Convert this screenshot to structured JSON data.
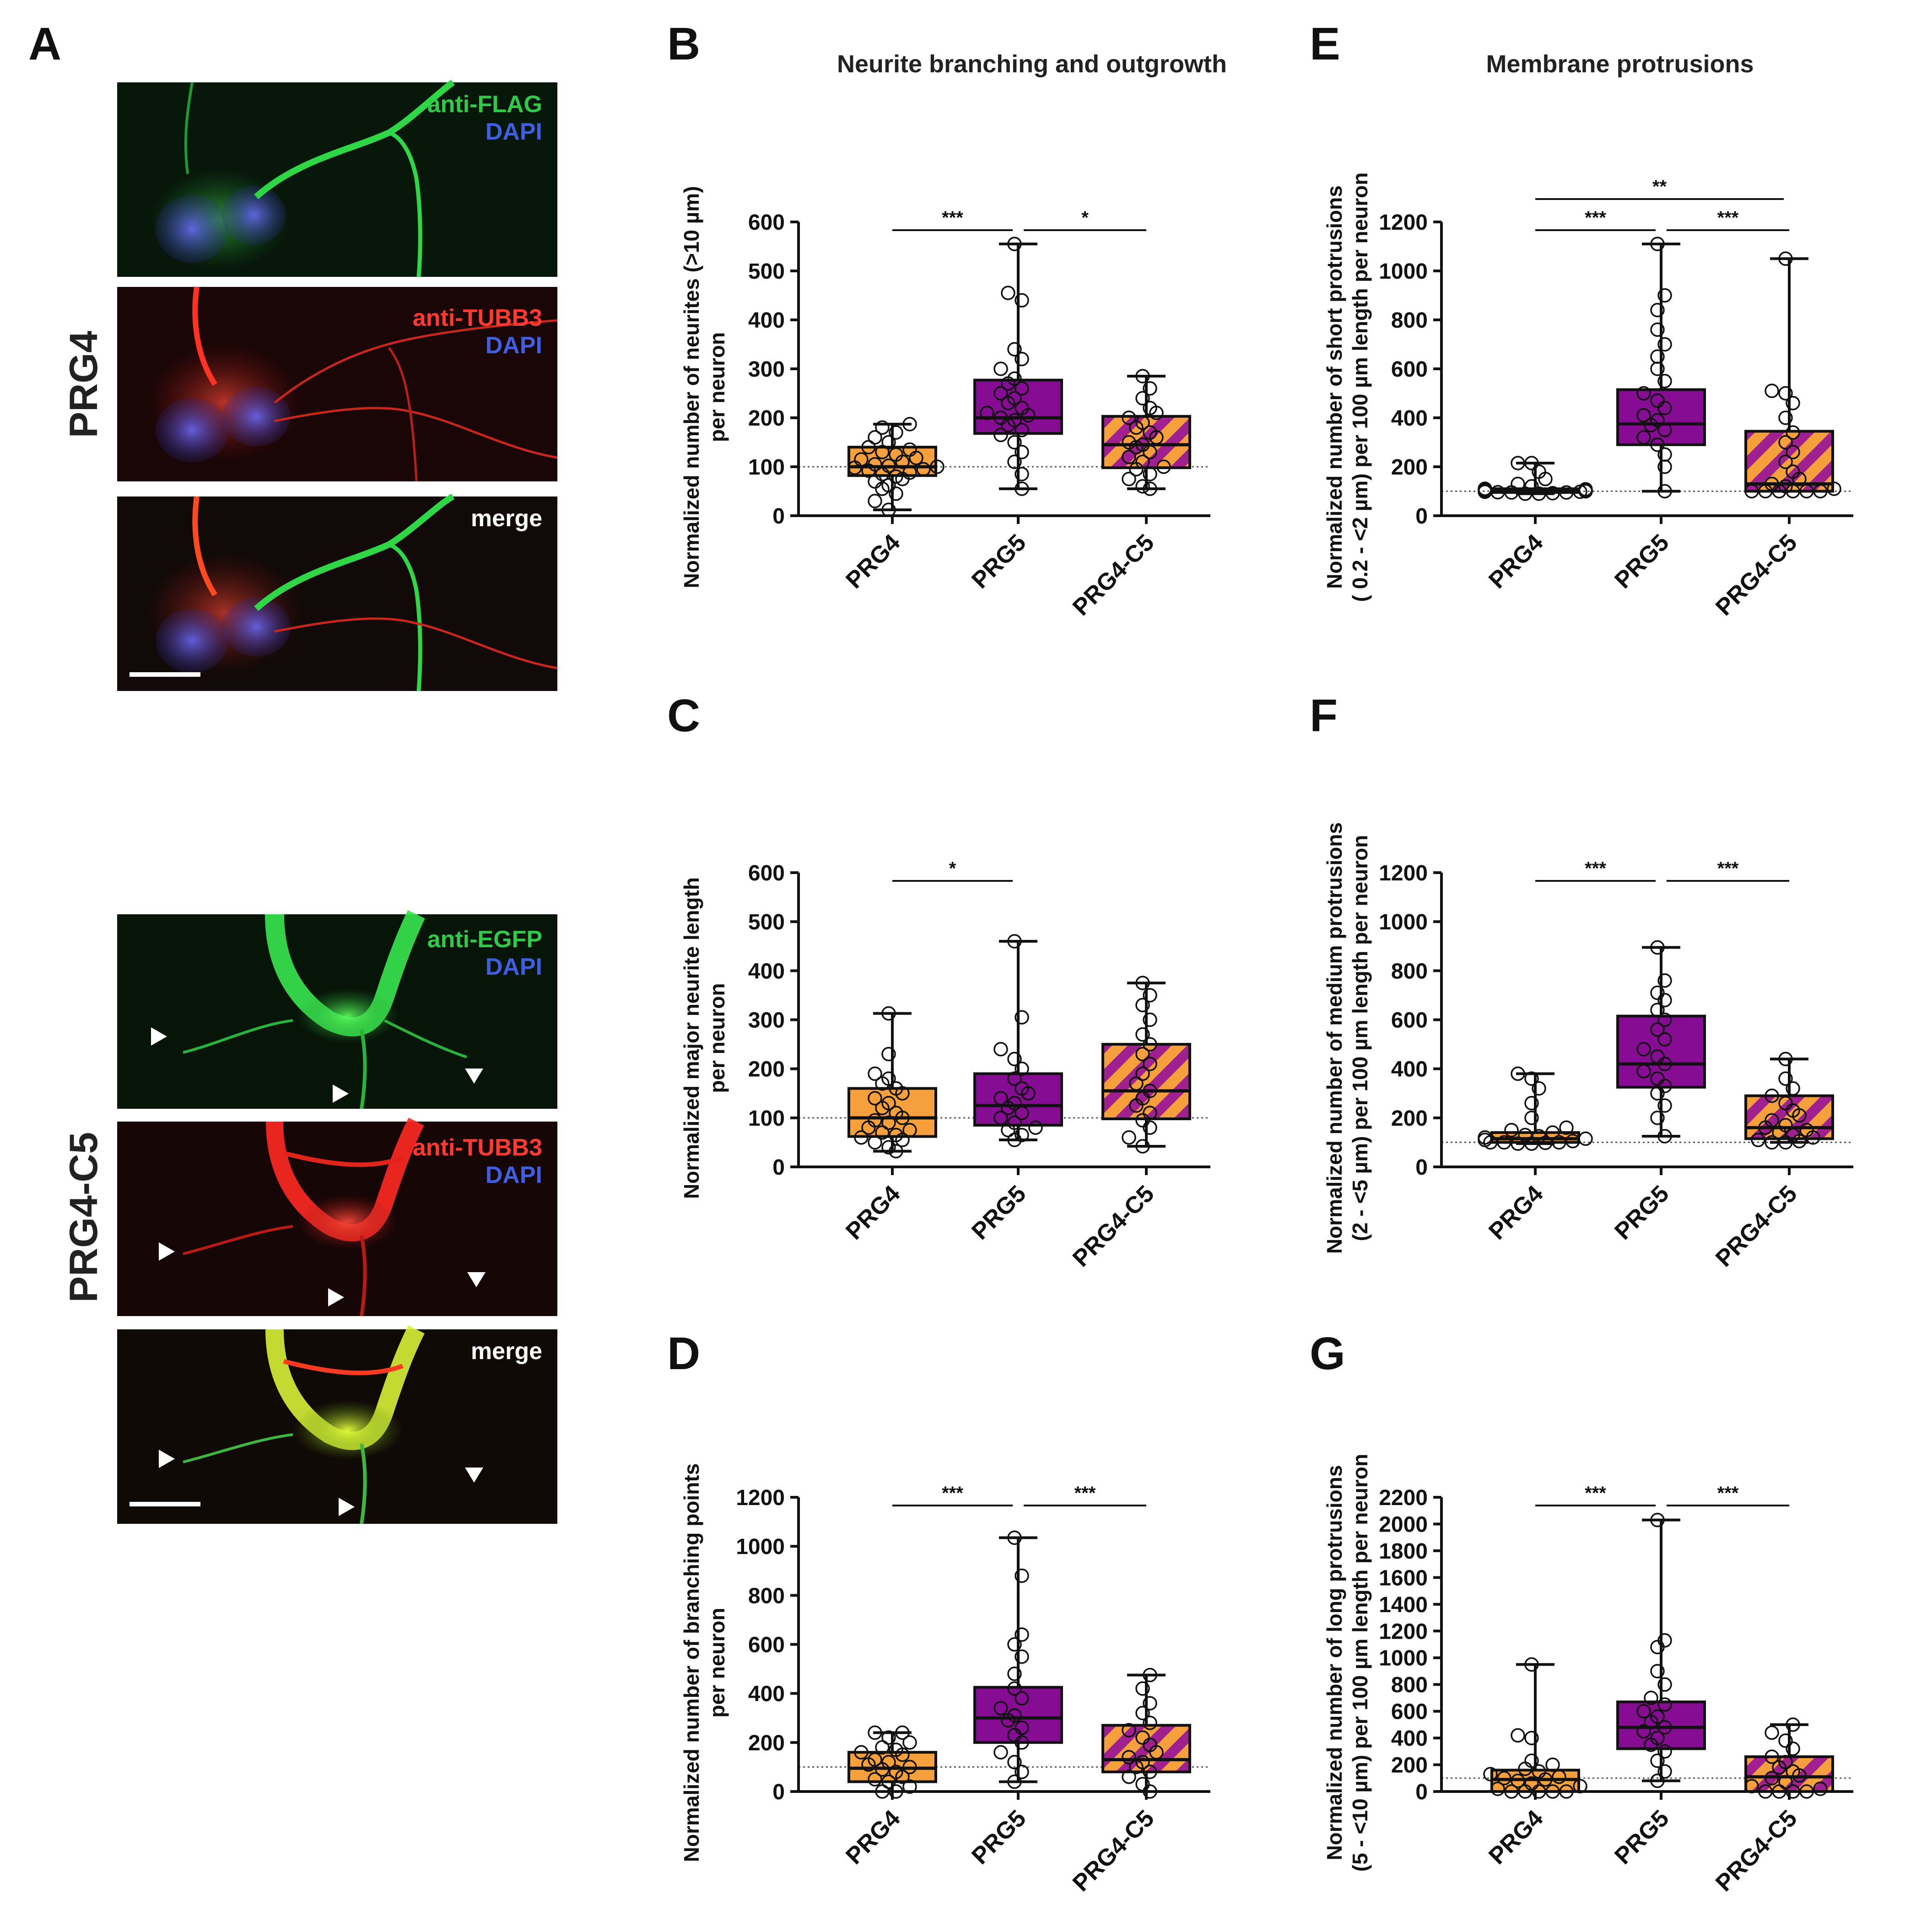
{
  "colors": {
    "prg4": "#f5a03c",
    "prg5": "#860c94",
    "prg4c5_base": "#f5a03c",
    "prg4c5_stripe": "#a0208f",
    "green": "#31c948",
    "red": "#ff3a30",
    "blue": "#3f5fe0",
    "white": "#ffffff"
  },
  "panel_letters": [
    "A",
    "B",
    "C",
    "D",
    "E",
    "F",
    "G"
  ],
  "sections": {
    "left_title": "Neurite branching and outgrowth",
    "right_title": "Membrane protrusions"
  },
  "micrographs": {
    "group1": {
      "condition": "PRG4",
      "tiles": [
        {
          "lines": [
            {
              "text": "anti-FLAG",
              "color": "green"
            },
            {
              "text": "DAPI",
              "color": "blue"
            }
          ]
        },
        {
          "lines": [
            {
              "text": "anti-TUBB3",
              "color": "red"
            },
            {
              "text": "DAPI",
              "color": "blue"
            }
          ]
        },
        {
          "lines": [
            {
              "text": "merge",
              "color": "white"
            }
          ]
        }
      ]
    },
    "group2": {
      "condition": "PRG4-C5",
      "tiles": [
        {
          "lines": [
            {
              "text": "anti-EGFP",
              "color": "green"
            },
            {
              "text": "DAPI",
              "color": "blue"
            }
          ]
        },
        {
          "lines": [
            {
              "text": "anti-TUBB3",
              "color": "red"
            },
            {
              "text": "DAPI",
              "color": "blue"
            }
          ]
        },
        {
          "lines": [
            {
              "text": "merge",
              "color": "white"
            }
          ]
        }
      ]
    }
  },
  "chart_data": [
    {
      "panel": "B",
      "type": "box",
      "ylabel_lines": [
        "Normalized number of neurites (>10 µm)",
        "per neuron"
      ],
      "categories": [
        "PRG4",
        "PRG5",
        "PRG4-C5"
      ],
      "ylim": [
        0,
        600
      ],
      "yticks": [
        0,
        100,
        200,
        300,
        400,
        500,
        600
      ],
      "reference_line": 100,
      "boxes": [
        {
          "min": 12,
          "q1": 82,
          "median": 100,
          "q3": 140,
          "max": 187
        },
        {
          "min": 55,
          "q1": 168,
          "median": 200,
          "q3": 277,
          "max": 555
        },
        {
          "min": 55,
          "q1": 98,
          "median": 145,
          "q3": 203,
          "max": 285
        }
      ],
      "points": [
        [
          12,
          30,
          45,
          55,
          62,
          70,
          75,
          80,
          85,
          88,
          92,
          95,
          98,
          100,
          102,
          105,
          110,
          115,
          118,
          125,
          130,
          135,
          140,
          150,
          160,
          170,
          180,
          187
        ],
        [
          55,
          85,
          110,
          130,
          150,
          165,
          175,
          185,
          195,
          200,
          205,
          210,
          220,
          230,
          240,
          250,
          260,
          270,
          280,
          300,
          320,
          340,
          440,
          455,
          555
        ],
        [
          55,
          60,
          75,
          85,
          95,
          100,
          110,
          120,
          130,
          140,
          145,
          150,
          160,
          170,
          180,
          190,
          200,
          210,
          220,
          240,
          260,
          285
        ]
      ],
      "significance": [
        {
          "from": 0,
          "to": 1,
          "label": "***"
        },
        {
          "from": 1,
          "to": 2,
          "label": "*"
        }
      ]
    },
    {
      "panel": "C",
      "type": "box",
      "ylabel_lines": [
        "Normalized major neurite length",
        "per neuron"
      ],
      "categories": [
        "PRG4",
        "PRG5",
        "PRG4-C5"
      ],
      "ylim": [
        0,
        600
      ],
      "yticks": [
        0,
        100,
        200,
        300,
        400,
        500,
        600
      ],
      "reference_line": 100,
      "boxes": [
        {
          "min": 32,
          "q1": 62,
          "median": 100,
          "q3": 160,
          "max": 313
        },
        {
          "min": 55,
          "q1": 85,
          "median": 125,
          "q3": 190,
          "max": 460
        },
        {
          "min": 42,
          "q1": 98,
          "median": 155,
          "q3": 250,
          "max": 375
        }
      ],
      "points": [
        [
          32,
          40,
          50,
          55,
          60,
          65,
          70,
          75,
          80,
          90,
          95,
          100,
          110,
          120,
          130,
          140,
          150,
          160,
          170,
          180,
          190,
          230,
          313
        ],
        [
          55,
          65,
          75,
          80,
          90,
          100,
          110,
          120,
          130,
          140,
          150,
          160,
          180,
          200,
          220,
          240,
          305,
          460
        ],
        [
          42,
          60,
          80,
          95,
          110,
          125,
          140,
          155,
          170,
          190,
          210,
          230,
          250,
          270,
          300,
          330,
          350,
          375
        ]
      ],
      "significance": [
        {
          "from": 0,
          "to": 1,
          "label": "*"
        }
      ]
    },
    {
      "panel": "D",
      "type": "box",
      "ylabel_lines": [
        "Normalized number of branching points",
        "per neuron"
      ],
      "categories": [
        "PRG4",
        "PRG5",
        "PRG4-C5"
      ],
      "ylim": [
        0,
        1200
      ],
      "yticks": [
        0,
        200,
        400,
        600,
        800,
        1000,
        1200
      ],
      "reference_line": 100,
      "boxes": [
        {
          "min": 0,
          "q1": 40,
          "median": 95,
          "q3": 160,
          "max": 240
        },
        {
          "min": 40,
          "q1": 200,
          "median": 300,
          "q3": 425,
          "max": 1035
        },
        {
          "min": 0,
          "q1": 80,
          "median": 130,
          "q3": 270,
          "max": 475
        }
      ],
      "points": [
        [
          0,
          0,
          20,
          40,
          50,
          60,
          80,
          90,
          100,
          110,
          120,
          130,
          150,
          160,
          170,
          180,
          200,
          220,
          240,
          240
        ],
        [
          40,
          80,
          120,
          160,
          200,
          230,
          260,
          290,
          310,
          340,
          380,
          420,
          480,
          550,
          600,
          640,
          880,
          1035
        ],
        [
          0,
          30,
          60,
          80,
          100,
          120,
          140,
          160,
          190,
          220,
          250,
          280,
          320,
          360,
          420,
          475
        ]
      ],
      "significance": [
        {
          "from": 0,
          "to": 1,
          "label": "***"
        },
        {
          "from": 1,
          "to": 2,
          "label": "***"
        }
      ]
    },
    {
      "panel": "E",
      "type": "box",
      "ylabel_lines": [
        "Normalized number of short protrusions",
        "( 0.2 - <2 µm) per 100 µm length per neuron"
      ],
      "categories": [
        "PRG4",
        "PRG5",
        "PRG4-C5"
      ],
      "ylim": [
        0,
        1200
      ],
      "yticks": [
        0,
        200,
        400,
        600,
        800,
        1000,
        1200
      ],
      "reference_line": 100,
      "boxes": [
        {
          "min": 90,
          "q1": 95,
          "median": 100,
          "q3": 110,
          "max": 215
        },
        {
          "min": 100,
          "q1": 290,
          "median": 375,
          "q3": 515,
          "max": 1110
        },
        {
          "min": 100,
          "q1": 100,
          "median": 130,
          "q3": 345,
          "max": 1050
        }
      ],
      "points": [
        [
          90,
          90,
          92,
          95,
          95,
          96,
          98,
          98,
          100,
          100,
          100,
          102,
          104,
          106,
          108,
          110,
          120,
          130,
          150,
          180,
          215,
          215
        ],
        [
          100,
          200,
          250,
          290,
          320,
          350,
          370,
          390,
          410,
          440,
          470,
          500,
          550,
          600,
          650,
          700,
          760,
          840,
          900,
          1110
        ],
        [
          100,
          100,
          100,
          100,
          100,
          100,
          110,
          120,
          130,
          150,
          180,
          220,
          260,
          300,
          340,
          400,
          460,
          500,
          510,
          1050
        ]
      ],
      "significance": [
        {
          "from": 0,
          "to": 1,
          "label": "***"
        },
        {
          "from": 1,
          "to": 2,
          "label": "***"
        },
        {
          "from": 0,
          "to": 2,
          "label": "**",
          "level": 2
        }
      ]
    },
    {
      "panel": "F",
      "type": "box",
      "ylabel_lines": [
        "Normalized number of medium protrusions",
        "(2 - <5 µm) per 100 µm length per neuron"
      ],
      "categories": [
        "PRG4",
        "PRG5",
        "PRG4-C5"
      ],
      "ylim": [
        0,
        1200
      ],
      "yticks": [
        0,
        200,
        400,
        600,
        800,
        1000,
        1200
      ],
      "reference_line": 100,
      "boxes": [
        {
          "min": 95,
          "q1": 100,
          "median": 115,
          "q3": 140,
          "max": 380
        },
        {
          "min": 125,
          "q1": 325,
          "median": 420,
          "q3": 615,
          "max": 895
        },
        {
          "min": 100,
          "q1": 115,
          "median": 160,
          "q3": 290,
          "max": 440
        }
      ],
      "points": [
        [
          95,
          95,
          98,
          100,
          100,
          100,
          105,
          110,
          115,
          120,
          125,
          130,
          140,
          150,
          160,
          200,
          260,
          320,
          360,
          380
        ],
        [
          125,
          200,
          250,
          300,
          330,
          360,
          390,
          420,
          450,
          480,
          520,
          560,
          600,
          640,
          680,
          710,
          760,
          895
        ],
        [
          100,
          100,
          105,
          110,
          120,
          130,
          140,
          150,
          160,
          170,
          190,
          210,
          230,
          260,
          290,
          320,
          360,
          440
        ]
      ],
      "significance": [
        {
          "from": 0,
          "to": 1,
          "label": "***"
        },
        {
          "from": 1,
          "to": 2,
          "label": "***"
        }
      ]
    },
    {
      "panel": "G",
      "type": "box",
      "ylabel_lines": [
        "Normalized number of long protrusions",
        "(5 - <10 µm) per 100 µm length per neuron"
      ],
      "categories": [
        "PRG4",
        "PRG5",
        "PRG4-C5"
      ],
      "ylim": [
        0,
        2200
      ],
      "yticks": [
        0,
        200,
        400,
        600,
        800,
        1000,
        1200,
        1400,
        1600,
        1800,
        2000,
        2200
      ],
      "reference_line": 100,
      "boxes": [
        {
          "min": 0,
          "q1": 0,
          "median": 90,
          "q3": 160,
          "max": 950
        },
        {
          "min": 80,
          "q1": 320,
          "median": 480,
          "q3": 670,
          "max": 2030
        },
        {
          "min": 0,
          "q1": 0,
          "median": 110,
          "q3": 260,
          "max": 500
        }
      ],
      "points": [
        [
          0,
          0,
          0,
          0,
          0,
          20,
          40,
          60,
          80,
          90,
          100,
          110,
          130,
          150,
          170,
          200,
          230,
          400,
          420,
          950
        ],
        [
          80,
          150,
          230,
          300,
          350,
          400,
          450,
          480,
          520,
          560,
          600,
          650,
          700,
          800,
          900,
          1080,
          1130,
          2030
        ],
        [
          0,
          0,
          0,
          0,
          20,
          40,
          70,
          100,
          120,
          150,
          180,
          220,
          260,
          320,
          380,
          440,
          500
        ]
      ],
      "significance": [
        {
          "from": 0,
          "to": 1,
          "label": "***"
        },
        {
          "from": 1,
          "to": 2,
          "label": "***"
        }
      ]
    }
  ]
}
